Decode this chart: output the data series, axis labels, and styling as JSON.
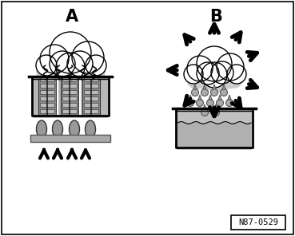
{
  "bg_color": "#ffffff",
  "border_color": "#000000",
  "label_A": "A",
  "label_B": "B",
  "part_number": "N87-0529",
  "cloud_fill": "#f0f0f0",
  "cloud_shadow": "#cccccc",
  "cloud_outline": "#000000",
  "container_fill": "#b8b8b8",
  "container_outline": "#000000",
  "arrow_color": "#000000",
  "bar_fill": "#999999",
  "drop_fill": "#aaaaaa",
  "liquid_fill": "#c0c0c0"
}
